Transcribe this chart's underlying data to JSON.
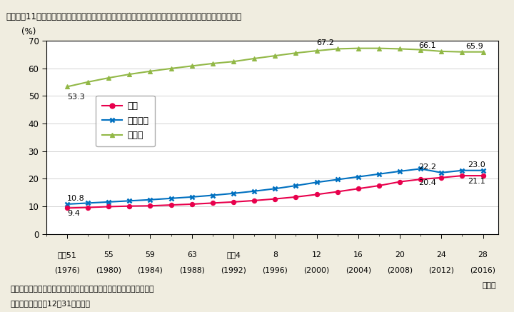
{
  "title": "Ｉ－１－11図　医療施設従事医師，同歯科医師，薬局・医療施設従事薬剤師に占める女性の割合の推移",
  "years": [
    1976,
    1978,
    1980,
    1982,
    1984,
    1986,
    1988,
    1990,
    1992,
    1994,
    1996,
    1998,
    2000,
    2002,
    2004,
    2006,
    2008,
    2010,
    2012,
    2014,
    2016
  ],
  "x_tick_years": [
    1976,
    1980,
    1984,
    1988,
    1992,
    1996,
    2000,
    2004,
    2008,
    2012,
    2016
  ],
  "x_tick_labels_top": [
    "昭和51",
    "55",
    "59",
    "63",
    "平成4",
    "8",
    "12",
    "16",
    "20",
    "24",
    "28"
  ],
  "x_tick_labels_bottom": [
    "(1976)",
    "(1980)",
    "(1984)",
    "(1988)",
    "(1992)",
    "(1996)",
    "(2000)",
    "(2004)",
    "(2008)",
    "(2012)",
    "(2016)"
  ],
  "doctor": [
    9.4,
    9.6,
    9.9,
    10.1,
    10.2,
    10.5,
    10.8,
    11.2,
    11.6,
    12.1,
    12.7,
    13.4,
    14.3,
    15.3,
    16.4,
    17.5,
    18.9,
    19.8,
    20.4,
    21.1,
    21.1
  ],
  "dentist": [
    10.8,
    11.2,
    11.6,
    12.0,
    12.4,
    12.9,
    13.4,
    14.0,
    14.7,
    15.5,
    16.4,
    17.5,
    18.7,
    19.7,
    20.7,
    21.7,
    22.7,
    23.6,
    22.2,
    23.0,
    23.0
  ],
  "pharmacist": [
    53.3,
    55.0,
    56.5,
    57.8,
    58.9,
    59.9,
    60.8,
    61.7,
    62.4,
    63.5,
    64.5,
    65.5,
    66.3,
    67.0,
    67.2,
    67.2,
    67.0,
    66.7,
    66.1,
    65.9,
    65.9
  ],
  "doctor_color": "#e8004c",
  "dentist_color": "#0070c0",
  "pharmacist_color": "#92b847",
  "ylim": [
    0,
    70
  ],
  "yticks": [
    0,
    10,
    20,
    30,
    40,
    50,
    60,
    70
  ],
  "ylabel": "(%)",
  "note1": "（備考）１．厚生労働省「医師・歯科医師・薬剤師調査」より作成。",
  "note2": "　　　　２．各年12月31日現在。",
  "legend_doctor": "医師",
  "legend_dentist": "歯科医師",
  "legend_pharmacist": "薬剤師",
  "bg_color": "#f0ede0",
  "title_bg_color": "#c8c0a0",
  "plot_bg_color": "#ffffff"
}
